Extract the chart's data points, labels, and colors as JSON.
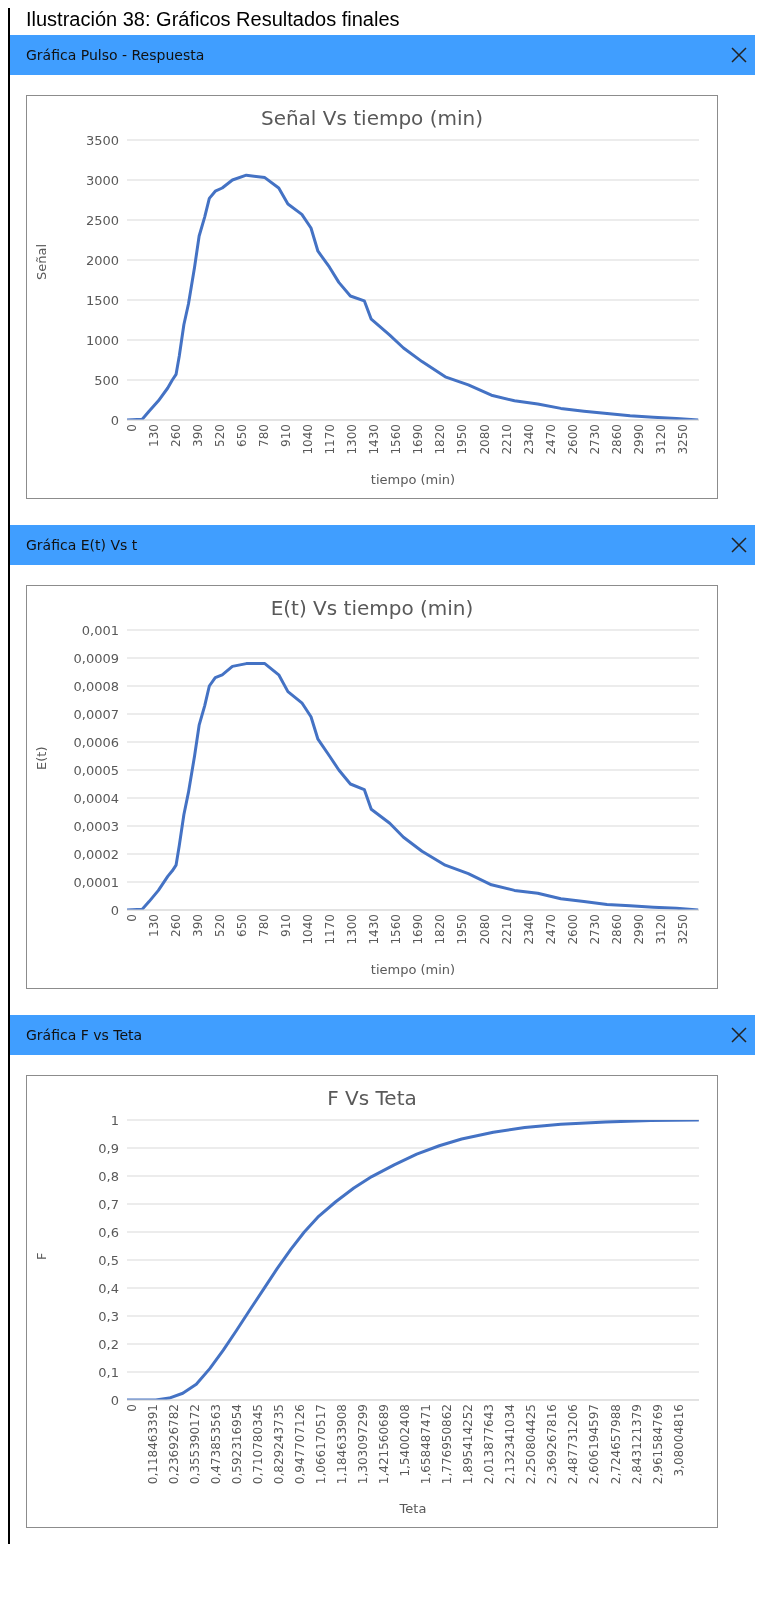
{
  "chart_data": [
    {
      "type": "line",
      "annotations": [
        "Ilustración 38: Gráficos Resultados finales"
      ],
      "subtitle": "Gráfica Pulso - Respuesta",
      "title": "Señal Vs tiempo (min)",
      "xlabel": "tiempo (min)",
      "ylabel": "Señal",
      "grid": "y",
      "x": [
        0,
        90,
        130,
        185,
        240,
        267,
        289,
        308,
        335,
        362,
        398,
        425,
        458,
        485,
        520,
        561,
        621,
        703,
        812,
        894,
        948,
        1030,
        1084,
        1125,
        1193,
        1248,
        1316,
        1398,
        1439,
        1548,
        1629,
        1738,
        1875,
        2011,
        2147,
        2283,
        2420,
        2556,
        2692,
        2828,
        2964,
        3101,
        3237,
        3365
      ],
      "series": [
        {
          "color": "#4472c4",
          "values": [
            0,
            10,
            110,
            240,
            400,
            500,
            570,
            800,
            1190,
            1450,
            1910,
            2300,
            2540,
            2770,
            2860,
            2900,
            3000,
            3060,
            3030,
            2900,
            2700,
            2570,
            2400,
            2110,
            1910,
            1720,
            1550,
            1490,
            1260,
            1060,
            900,
            730,
            540,
            440,
            310,
            240,
            200,
            145,
            110,
            80,
            52,
            33,
            20,
            0
          ]
        }
      ],
      "xlim": [
        0,
        3370
      ],
      "xticks": [
        0,
        130,
        260,
        390,
        520,
        650,
        780,
        910,
        1040,
        1170,
        1300,
        1430,
        1560,
        1690,
        1820,
        1950,
        2080,
        2210,
        2340,
        2470,
        2600,
        2730,
        2860,
        2990,
        3120,
        3250
      ],
      "ylim": [
        0,
        3500
      ],
      "yticks": [
        0,
        500,
        1000,
        1500,
        2000,
        2500,
        3000,
        3500
      ]
    },
    {
      "type": "line",
      "subtitle": "Gráfica E(t) Vs t",
      "title": "E(t) Vs tiempo (min)",
      "xlabel": "tiempo (min)",
      "ylabel": "E(t)",
      "grid": "y",
      "x": [
        0,
        90,
        130,
        185,
        240,
        267,
        289,
        308,
        335,
        362,
        398,
        425,
        458,
        485,
        520,
        561,
        621,
        703,
        812,
        894,
        948,
        1030,
        1084,
        1125,
        1193,
        1248,
        1316,
        1398,
        1439,
        1548,
        1629,
        1738,
        1875,
        2011,
        2147,
        2283,
        2420,
        2556,
        2692,
        2828,
        2964,
        3101,
        3237,
        3365
      ],
      "series": [
        {
          "color": "#4472c4",
          "values": [
            0,
            3e-06,
            3e-05,
            7e-05,
            0.00012,
            0.00014,
            0.00016,
            0.00023,
            0.00034,
            0.00042,
            0.00055,
            0.00066,
            0.00073,
            0.0008,
            0.00083,
            0.00084,
            0.00087,
            0.00088,
            0.00088,
            0.00084,
            0.00078,
            0.00074,
            0.00069,
            0.00061,
            0.00055,
            0.0005,
            0.00045,
            0.00043,
            0.00036,
            0.00031,
            0.00026,
            0.00021,
            0.00016,
            0.00013,
            9e-05,
            7e-05,
            6e-05,
            4e-05,
            3e-05,
            2e-05,
            1.5e-05,
            1e-05,
            6e-06,
            0
          ]
        }
      ],
      "xlim": [
        0,
        3370
      ],
      "xticks": [
        0,
        130,
        260,
        390,
        520,
        650,
        780,
        910,
        1040,
        1170,
        1300,
        1430,
        1560,
        1690,
        1820,
        1950,
        2080,
        2210,
        2340,
        2470,
        2600,
        2730,
        2860,
        2990,
        3120,
        3250
      ],
      "ylim": [
        0,
        0.001
      ],
      "yticks": [
        0,
        {
          "value": 0.0001,
          "label": "0,0001"
        },
        {
          "value": 0.0002,
          "label": "0,0002"
        },
        {
          "value": 0.0003,
          "label": "0,0003"
        },
        {
          "value": 0.0004,
          "label": "0,0004"
        },
        {
          "value": 0.0005,
          "label": "0,0005"
        },
        {
          "value": 0.0006,
          "label": "0,0006"
        },
        {
          "value": 0.0007,
          "label": "0,0007"
        },
        {
          "value": 0.0008,
          "label": "0,0008"
        },
        {
          "value": 0.0009,
          "label": "0,0009"
        },
        {
          "value": 0.001,
          "label": "0,001"
        }
      ]
    },
    {
      "type": "line",
      "subtitle": "Gráfica F vs Teta",
      "title": "F Vs Teta",
      "xlabel": "Teta",
      "ylabel": "F",
      "grid": "y",
      "x": [
        0,
        0.162,
        0.238,
        0.314,
        0.39,
        0.466,
        0.542,
        0.618,
        0.694,
        0.77,
        0.846,
        0.922,
        0.998,
        1.074,
        1.175,
        1.277,
        1.378,
        1.504,
        1.631,
        1.758,
        1.884,
        2.062,
        2.239,
        2.442,
        2.695,
        2.948,
        3.219
      ],
      "series": [
        {
          "color": "#4472c4",
          "values": [
            0,
            0,
            0.007,
            0.024,
            0.056,
            0.112,
            0.178,
            0.25,
            0.324,
            0.397,
            0.47,
            0.538,
            0.6,
            0.653,
            0.708,
            0.757,
            0.798,
            0.84,
            0.878,
            0.908,
            0.932,
            0.956,
            0.973,
            0.985,
            0.993,
            0.998,
            1
          ]
        }
      ],
      "xlim": [
        0,
        3.22
      ],
      "xticks": [
        0,
        {
          "value": 0.118463391,
          "label": "0,118463391"
        },
        {
          "value": 0.236926782,
          "label": "0,236926782"
        },
        {
          "value": 0.355390172,
          "label": "0,355390172"
        },
        {
          "value": 0.473853563,
          "label": "0,473853563"
        },
        {
          "value": 0.592316954,
          "label": "0,592316954"
        },
        {
          "value": 0.710780345,
          "label": "0,710780345"
        },
        {
          "value": 0.829243735,
          "label": "0,829243735"
        },
        {
          "value": 0.947707126,
          "label": "0,947707126"
        },
        {
          "value": 1.066170517,
          "label": "1,066170517"
        },
        {
          "value": 1.184633908,
          "label": "1,184633908"
        },
        {
          "value": 1.303097299,
          "label": "1,303097299"
        },
        {
          "value": 1.421560689,
          "label": "1,421560689"
        },
        {
          "value": 1.54002408,
          "label": "1,54002408"
        },
        {
          "value": 1.658487471,
          "label": "1,658487471"
        },
        {
          "value": 1.776950862,
          "label": "1,776950862"
        },
        {
          "value": 1.895414252,
          "label": "1,895414252"
        },
        {
          "value": 2.013877643,
          "label": "2,013877643"
        },
        {
          "value": 2.132341034,
          "label": "2,132341034"
        },
        {
          "value": 2.250804425,
          "label": "2,250804425"
        },
        {
          "value": 2.369267816,
          "label": "2,369267816"
        },
        {
          "value": 2.487731206,
          "label": "2,487731206"
        },
        {
          "value": 2.606194597,
          "label": "2,606194597"
        },
        {
          "value": 2.724657988,
          "label": "2,724657988"
        },
        {
          "value": 2.843121379,
          "label": "2,843121379"
        },
        {
          "value": 2.961584769,
          "label": "2,961584769"
        },
        {
          "value": 3.08004816,
          "label": "3,08004816"
        }
      ],
      "ylim": [
        0,
        1
      ],
      "yticks": [
        0,
        {
          "value": 0.1,
          "label": "0,1"
        },
        {
          "value": 0.2,
          "label": "0,2"
        },
        {
          "value": 0.3,
          "label": "0,3"
        },
        {
          "value": 0.4,
          "label": "0,4"
        },
        {
          "value": 0.5,
          "label": "0,5"
        },
        {
          "value": 0.6,
          "label": "0,6"
        },
        {
          "value": 0.7,
          "label": "0,7"
        },
        {
          "value": 0.8,
          "label": "0,8"
        },
        {
          "value": 0.9,
          "label": "0,9"
        },
        1
      ]
    }
  ]
}
